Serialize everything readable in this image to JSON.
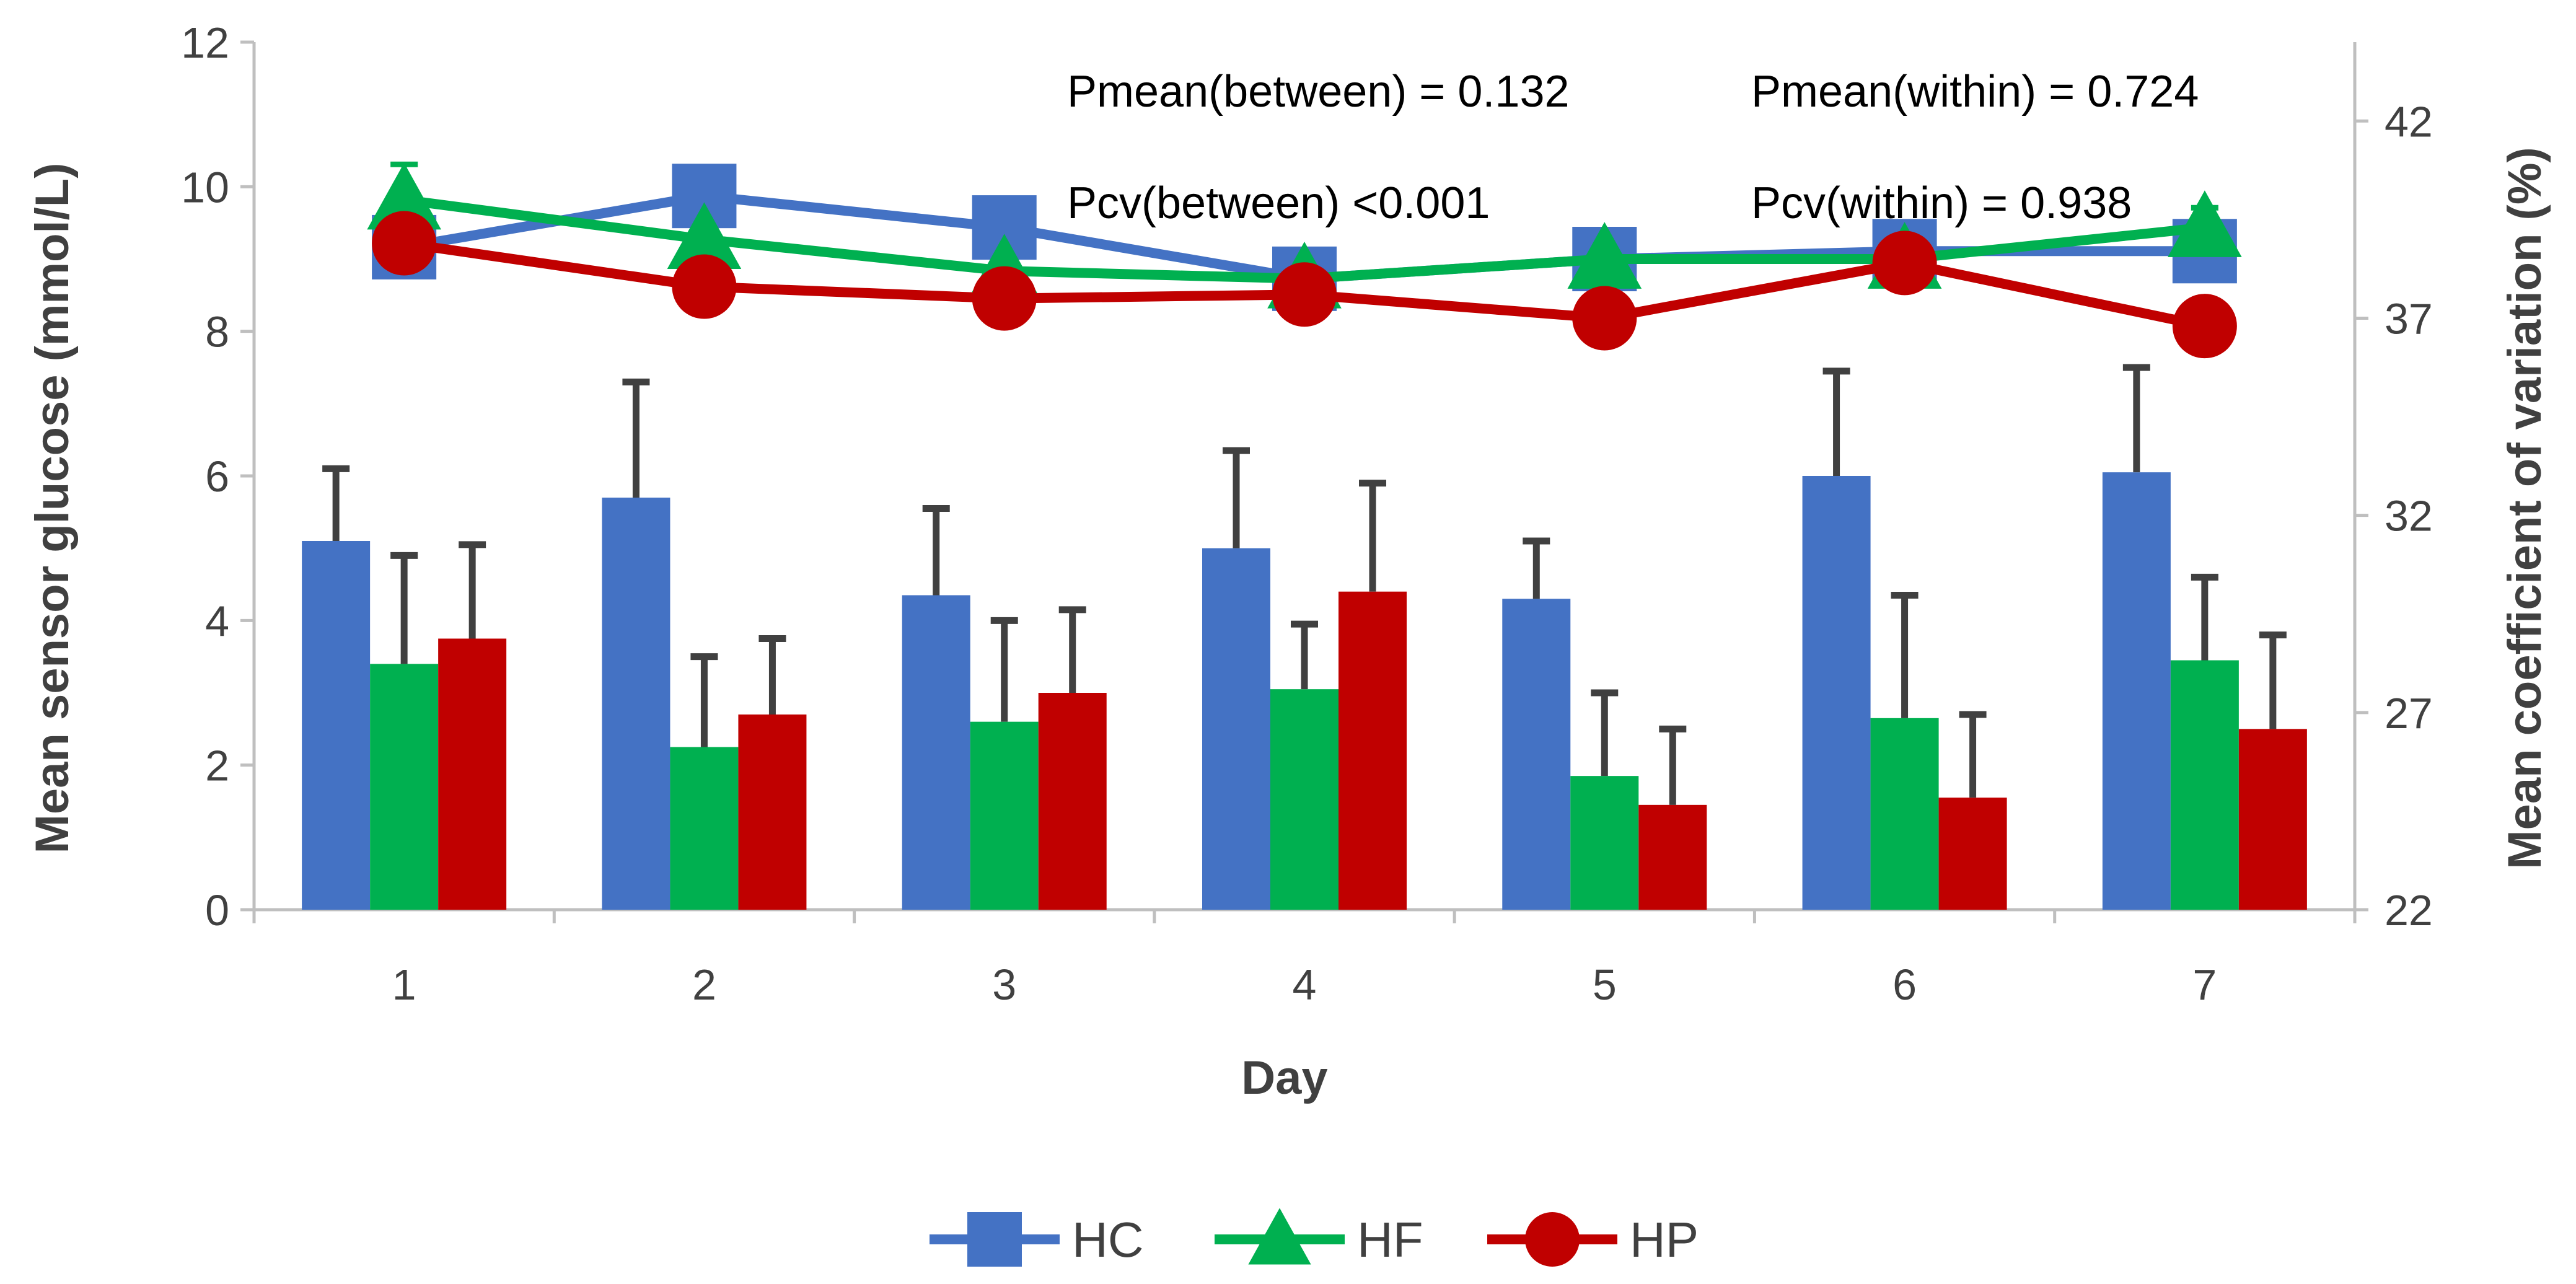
{
  "chart_data": {
    "type": "bar+line",
    "title": "",
    "xlabel": "Day",
    "ylabel_left": "Mean sensor glucose (mmol/L)",
    "ylabel_right": "Mean coefficient of variation (%)",
    "categories": [
      "1",
      "2",
      "3",
      "4",
      "5",
      "6",
      "7"
    ],
    "ylim_left": [
      0,
      12
    ],
    "yticks_left": [
      "0",
      "2",
      "4",
      "6",
      "8",
      "10",
      "12"
    ],
    "ylim_right": [
      22,
      44
    ],
    "yticks_right": [
      "22",
      "27",
      "32",
      "37",
      "42"
    ],
    "grid": false,
    "bar_axis": "left",
    "line_axis": "right",
    "bars": [
      {
        "name": "HC",
        "color": "#4472C4",
        "values": [
          5.1,
          5.7,
          4.35,
          5.0,
          4.3,
          6.0,
          6.05
        ],
        "errors": [
          1.0,
          1.6,
          1.2,
          1.35,
          0.8,
          1.45,
          1.45
        ]
      },
      {
        "name": "HF",
        "color": "#00B050",
        "values": [
          3.4,
          2.25,
          2.6,
          3.05,
          1.85,
          2.65,
          3.45
        ],
        "errors": [
          1.5,
          1.25,
          1.4,
          0.9,
          1.15,
          1.7,
          1.15
        ]
      },
      {
        "name": "HP",
        "color": "#C00000",
        "values": [
          3.75,
          2.7,
          3.0,
          4.4,
          1.45,
          1.55,
          2.5
        ],
        "errors": [
          1.3,
          1.05,
          1.15,
          1.5,
          1.05,
          1.15,
          1.3
        ]
      }
    ],
    "error_bar_color": "#404040",
    "lines": [
      {
        "name": "HC",
        "color": "#4472C4",
        "marker": "square",
        "values": [
          38.8,
          40.1,
          39.3,
          38.0,
          38.5,
          38.7,
          38.7
        ],
        "errors": [
          0,
          0,
          0,
          0,
          0,
          0,
          0
        ]
      },
      {
        "name": "HF",
        "color": "#00B050",
        "marker": "triangle",
        "values": [
          40.0,
          39.0,
          38.2,
          38.0,
          38.5,
          38.5,
          39.3
        ],
        "errors": [
          0.9,
          0,
          0,
          0,
          0,
          0,
          0.5
        ]
      },
      {
        "name": "HP",
        "color": "#C00000",
        "marker": "circle",
        "values": [
          38.9,
          37.8,
          37.5,
          37.6,
          37.0,
          38.4,
          36.8
        ],
        "errors": [
          0,
          0,
          0,
          0,
          0,
          0,
          0
        ]
      }
    ],
    "annotations": [
      "Pmean(between) = 0.132",
      "Pmean(within) = 0.724",
      "Pcv(between) <0.001",
      "Pcv(within) = 0.938"
    ],
    "legend": {
      "position": "bottom",
      "entries": [
        "HC",
        "HF",
        "HP"
      ]
    }
  }
}
